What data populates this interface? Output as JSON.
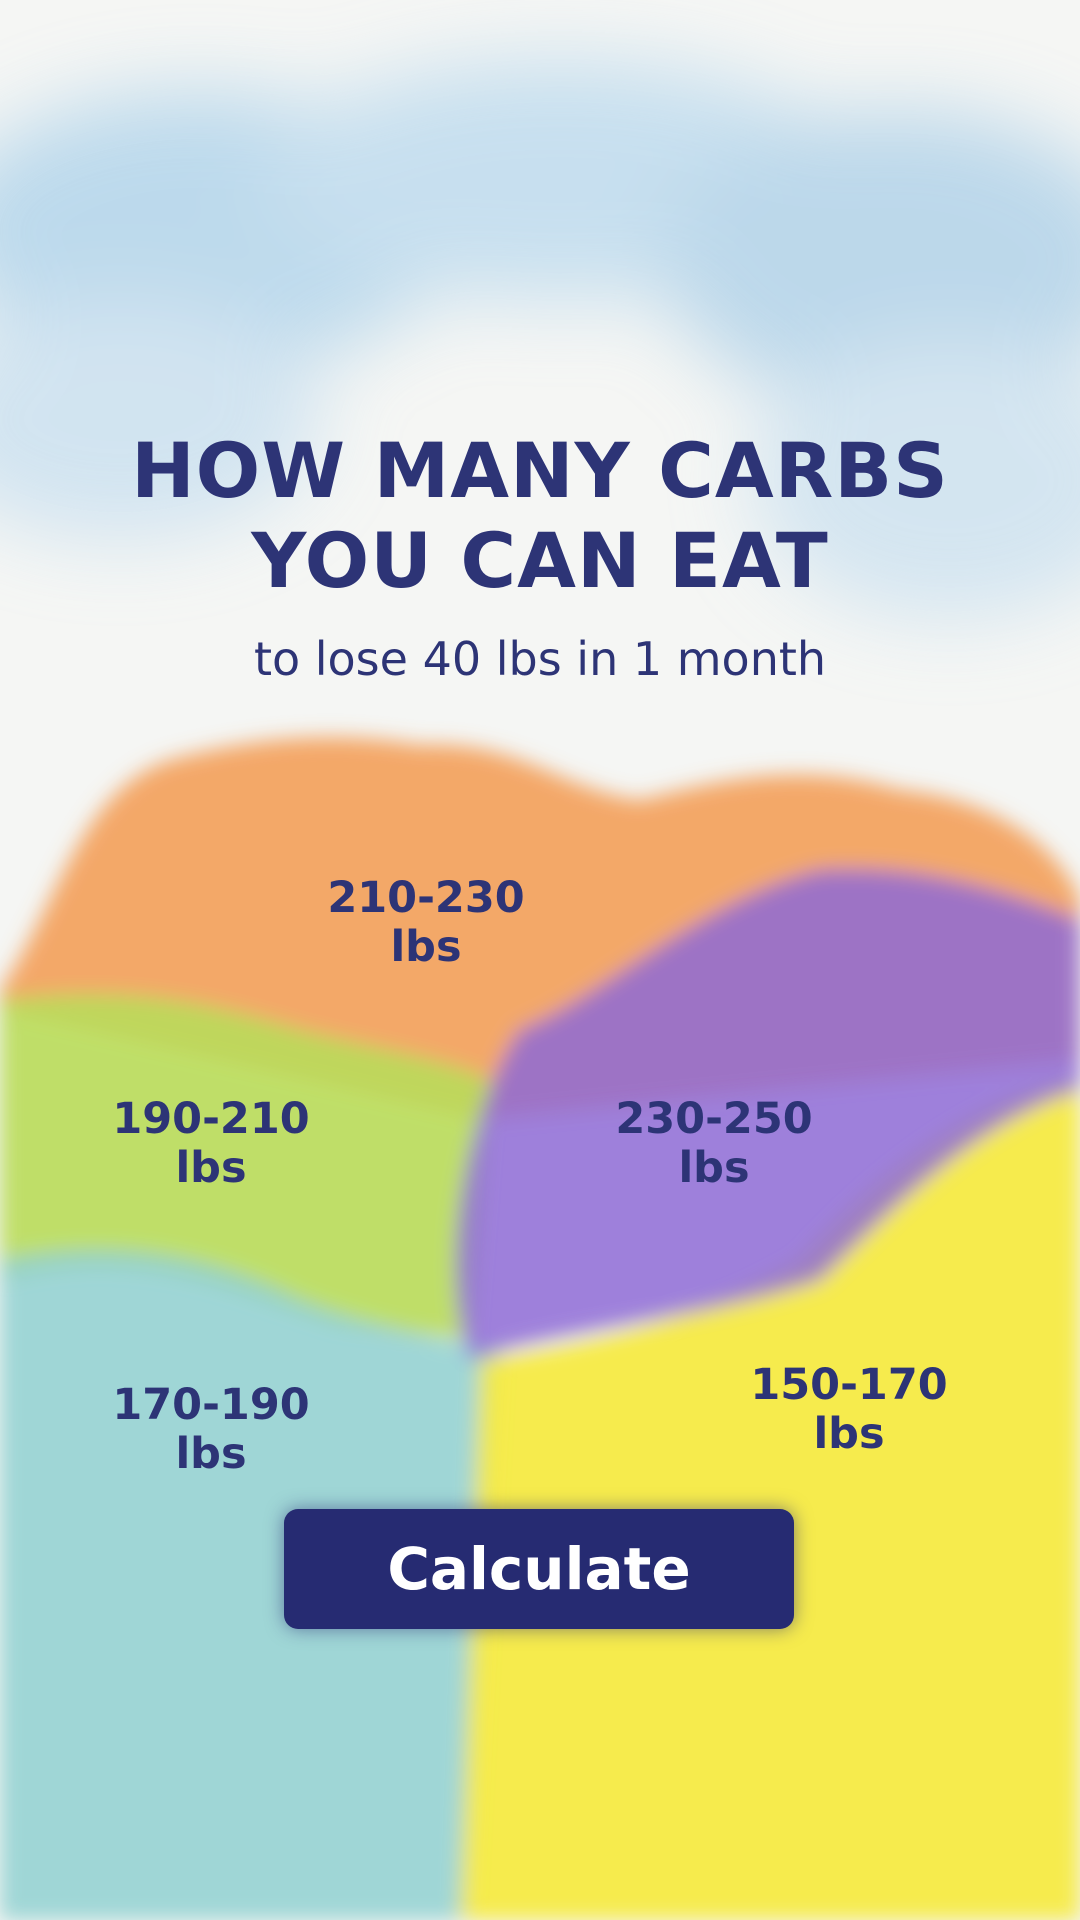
{
  "header": {
    "title_lines": [
      "HOW MANY CARBS",
      "YOU CAN EAT"
    ],
    "subtitle": "to lose 40 lbs in 1 month"
  },
  "options": [
    {
      "range": "210-230",
      "unit": "lbs"
    },
    {
      "range": "190-210",
      "unit": "lbs"
    },
    {
      "range": "230-250",
      "unit": "lbs"
    },
    {
      "range": "170-190",
      "unit": "lbs"
    },
    {
      "range": "150-170",
      "unit": "lbs"
    }
  ],
  "button": "Calculate"
}
